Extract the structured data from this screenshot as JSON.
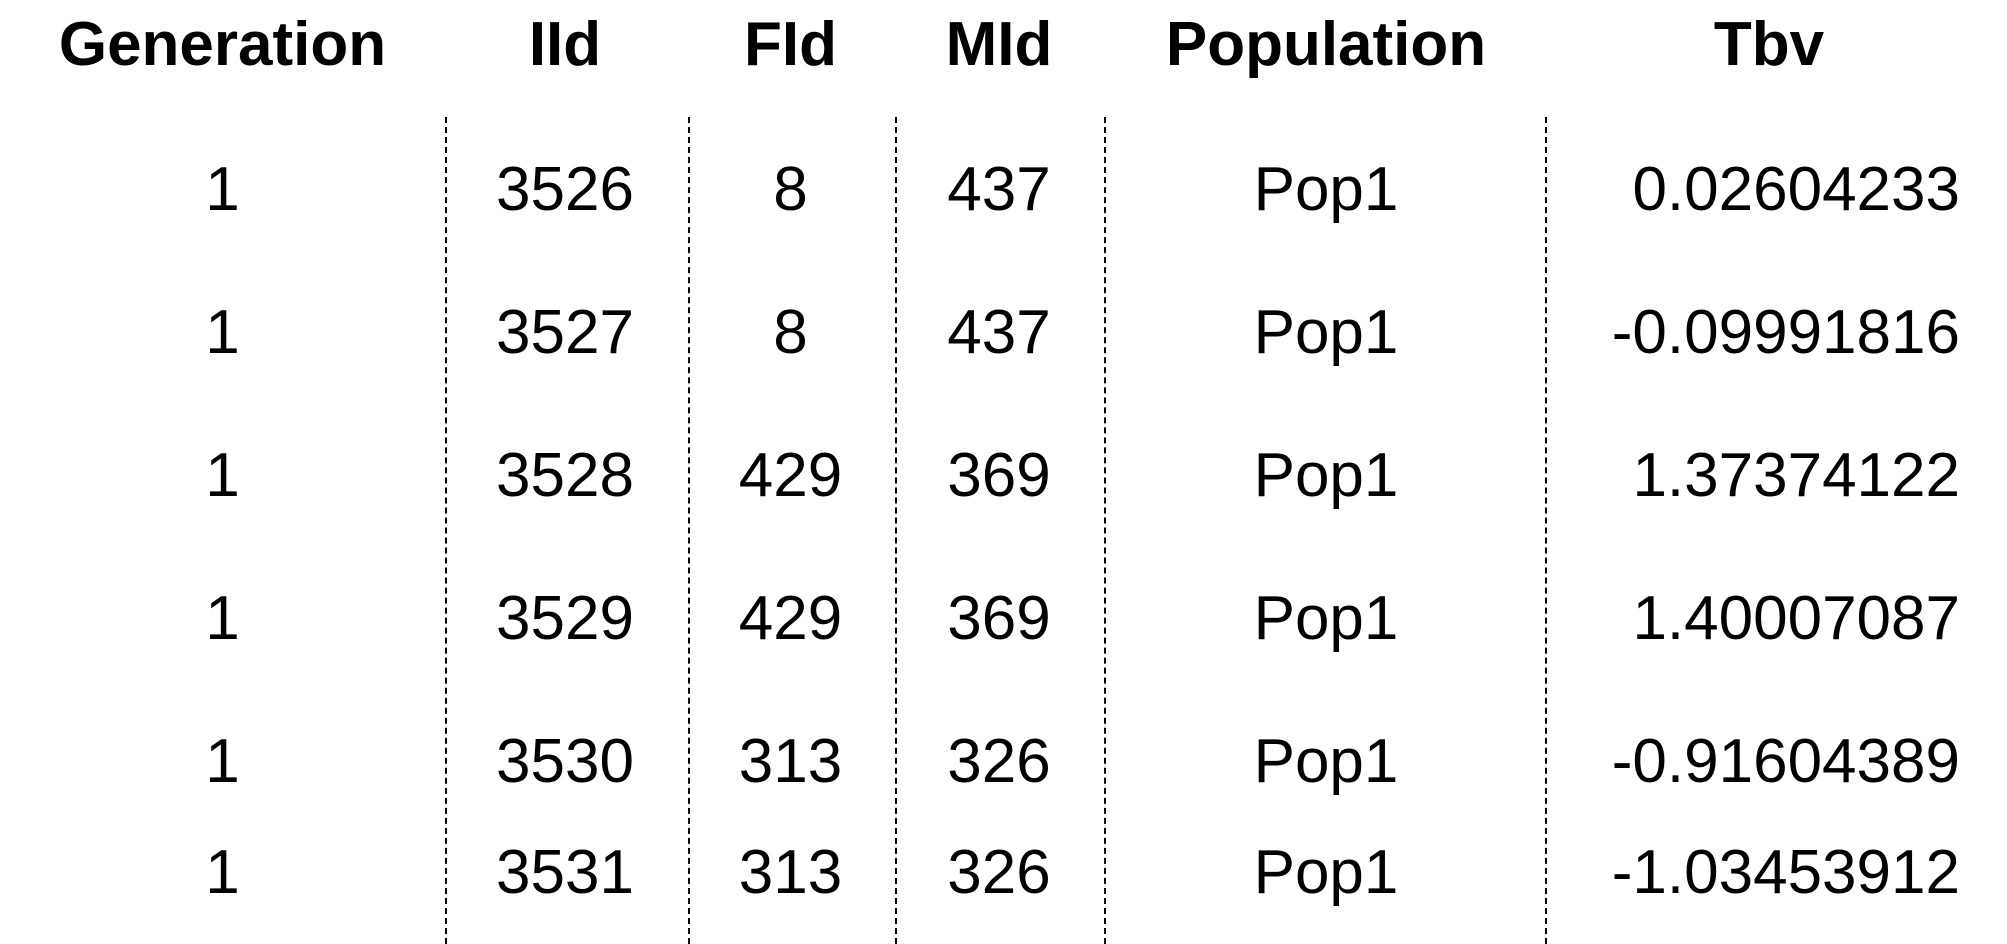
{
  "table": {
    "columns": [
      "Generation",
      "IId",
      "FId",
      "MId",
      "Population",
      "Tbv"
    ],
    "rows": [
      [
        "1",
        "3526",
        "8",
        "437",
        "Pop1",
        "0.02604233"
      ],
      [
        "1",
        "3527",
        "8",
        "437",
        "Pop1",
        "-0.09991816"
      ],
      [
        "1",
        "3528",
        "429",
        "369",
        "Pop1",
        "1.37374122"
      ],
      [
        "1",
        "3529",
        "429",
        "369",
        "Pop1",
        "1.40007087"
      ],
      [
        "1",
        "3530",
        "313",
        "326",
        "Pop1",
        "-0.91604389"
      ],
      [
        "1",
        "3531",
        "313",
        "326",
        "Pop1",
        "-1.03453912"
      ]
    ]
  }
}
